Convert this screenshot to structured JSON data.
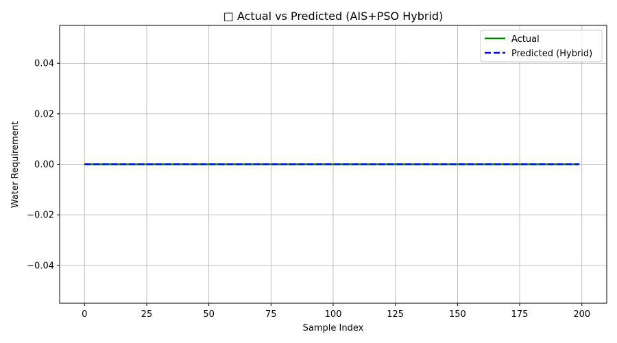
{
  "chart_data": {
    "type": "line",
    "title": "□ Actual vs Predicted (AIS+PSO Hybrid)",
    "xlabel": "Sample Index",
    "ylabel": "Water Requirement",
    "xlim": [
      -10,
      210
    ],
    "ylim": [
      -0.055,
      0.055
    ],
    "xticks": [
      0,
      25,
      50,
      75,
      100,
      125,
      150,
      175,
      200
    ],
    "yticks": [
      -0.04,
      -0.02,
      0.0,
      0.02,
      0.04
    ],
    "xtick_labels": [
      "0",
      "25",
      "50",
      "75",
      "100",
      "125",
      "150",
      "175",
      "200"
    ],
    "ytick_labels": [
      "−0.04",
      "−0.02",
      "0.00",
      "0.02",
      "0.04"
    ],
    "grid": true,
    "legend_position": "top-right",
    "series": [
      {
        "name": "Actual",
        "color": "#008000",
        "style": "solid",
        "x_range": [
          0,
          199
        ],
        "value": 0.0
      },
      {
        "name": "Predicted (Hybrid)",
        "color": "#0000ff",
        "style": "dashed",
        "x_range": [
          0,
          199
        ],
        "value": 0.0
      }
    ]
  }
}
